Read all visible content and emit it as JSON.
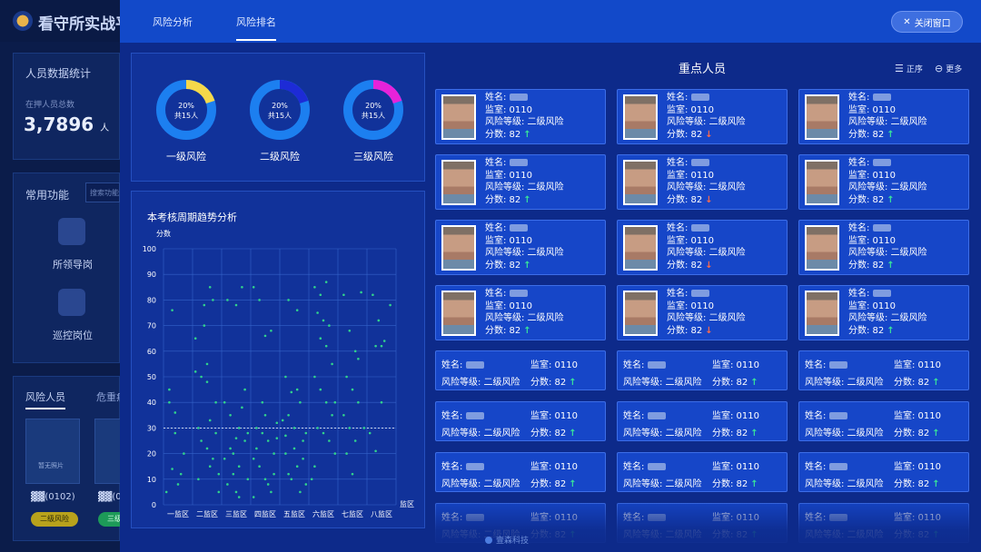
{
  "background": {
    "title": "看守所实战平",
    "stats_title": "人员数据统计",
    "total_label": "在押人员总数",
    "total_value": "3,7896",
    "total_unit": "人",
    "common_title": "常用功能",
    "search_placeholder": "搜索功能",
    "func1": "所领导岗",
    "func2": "巡控岗位",
    "tab1": "风险人员",
    "tab2": "危重病",
    "thumb_label": "暂无照片",
    "person_code1": "(0102)",
    "person_code2": "(0",
    "tag1": "二级风险",
    "tag2": "三级"
  },
  "modal": {
    "tabs": [
      "风险分析",
      "风险排名"
    ],
    "active_tab": 1,
    "close_label": "关闭窗口"
  },
  "donuts": [
    {
      "label": "一级风险",
      "percent_text": "20%",
      "count_text": "共15人",
      "percent": 0.2,
      "accent": "#f5d84a"
    },
    {
      "label": "二级风险",
      "percent_text": "20%",
      "count_text": "共15人",
      "percent": 0.2,
      "accent": "#1d2bd6"
    },
    {
      "label": "三级风险",
      "percent_text": "20%",
      "count_text": "共15人",
      "percent": 0.2,
      "accent": "#e623d9"
    }
  ],
  "chart_data": {
    "type": "scatter",
    "title": "本考核周期趋势分析",
    "ylabel": "分数",
    "xlabel": "监区",
    "categories": [
      "一监区",
      "二监区",
      "三监区",
      "四监区",
      "五监区",
      "六监区",
      "七监区",
      "八监区"
    ],
    "yticks": [
      0,
      10,
      20,
      30,
      40,
      50,
      60,
      70,
      80,
      90,
      100
    ],
    "ylim": [
      0,
      100
    ],
    "reference_line": 30,
    "point_color": "#31d28c",
    "points": [
      [
        0.1,
        5
      ],
      [
        0.3,
        76
      ],
      [
        0.2,
        40
      ],
      [
        0.4,
        28
      ],
      [
        0.6,
        12
      ],
      [
        0.5,
        8
      ],
      [
        0.2,
        45
      ],
      [
        0.4,
        36
      ],
      [
        0.7,
        20
      ],
      [
        0.3,
        14
      ],
      [
        1.1,
        52
      ],
      [
        1.3,
        50
      ],
      [
        1.5,
        48
      ],
      [
        1.6,
        85
      ],
      [
        1.4,
        78
      ],
      [
        1.7,
        80
      ],
      [
        1.2,
        30
      ],
      [
        1.5,
        22
      ],
      [
        1.8,
        28
      ],
      [
        1.3,
        25
      ],
      [
        1.6,
        15
      ],
      [
        1.9,
        12
      ],
      [
        1.1,
        65
      ],
      [
        1.4,
        70
      ],
      [
        1.8,
        40
      ],
      [
        1.2,
        10
      ],
      [
        1.6,
        33
      ],
      [
        1.5,
        55
      ],
      [
        1.9,
        5
      ],
      [
        1.7,
        18
      ],
      [
        2.2,
        80
      ],
      [
        2.5,
        78
      ],
      [
        2.7,
        85
      ],
      [
        2.1,
        40
      ],
      [
        2.3,
        35
      ],
      [
        2.6,
        30
      ],
      [
        2.8,
        25
      ],
      [
        2.4,
        20
      ],
      [
        2.6,
        15
      ],
      [
        2.9,
        10
      ],
      [
        2.2,
        8
      ],
      [
        2.5,
        5
      ],
      [
        2.7,
        38
      ],
      [
        2.3,
        22
      ],
      [
        2.9,
        28
      ],
      [
        2.1,
        18
      ],
      [
        2.8,
        45
      ],
      [
        2.4,
        12
      ],
      [
        2.6,
        3
      ],
      [
        2.5,
        26
      ],
      [
        3.1,
        85
      ],
      [
        3.3,
        80
      ],
      [
        3.5,
        66
      ],
      [
        3.7,
        68
      ],
      [
        3.2,
        30
      ],
      [
        3.4,
        28
      ],
      [
        3.6,
        25
      ],
      [
        3.8,
        20
      ],
      [
        3.3,
        15
      ],
      [
        3.5,
        10
      ],
      [
        3.7,
        5
      ],
      [
        3.1,
        18
      ],
      [
        3.9,
        32
      ],
      [
        3.4,
        40
      ],
      [
        3.6,
        8
      ],
      [
        3.2,
        22
      ],
      [
        3.8,
        12
      ],
      [
        3.5,
        35
      ],
      [
        3.9,
        26
      ],
      [
        3.1,
        3
      ],
      [
        4.3,
        80
      ],
      [
        4.6,
        76
      ],
      [
        4.2,
        50
      ],
      [
        4.4,
        44
      ],
      [
        4.7,
        40
      ],
      [
        4.3,
        35
      ],
      [
        4.5,
        30
      ],
      [
        4.8,
        25
      ],
      [
        4.2,
        20
      ],
      [
        4.6,
        15
      ],
      [
        4.4,
        10
      ],
      [
        4.7,
        5
      ],
      [
        4.9,
        28
      ],
      [
        4.1,
        33
      ],
      [
        4.5,
        22
      ],
      [
        4.8,
        18
      ],
      [
        4.3,
        12
      ],
      [
        4.6,
        45
      ],
      [
        4.9,
        8
      ],
      [
        4.2,
        27
      ],
      [
        5.2,
        85
      ],
      [
        5.4,
        82
      ],
      [
        5.6,
        87
      ],
      [
        5.3,
        75
      ],
      [
        5.5,
        72
      ],
      [
        5.7,
        70
      ],
      [
        5.2,
        50
      ],
      [
        5.4,
        45
      ],
      [
        5.6,
        40
      ],
      [
        5.8,
        35
      ],
      [
        5.3,
        30
      ],
      [
        5.5,
        28
      ],
      [
        5.7,
        25
      ],
      [
        5.9,
        20
      ],
      [
        5.2,
        15
      ],
      [
        5.6,
        62
      ],
      [
        5.8,
        55
      ],
      [
        5.4,
        65
      ],
      [
        5.1,
        10
      ],
      [
        5.9,
        40
      ],
      [
        6.2,
        82
      ],
      [
        6.4,
        68
      ],
      [
        6.6,
        60
      ],
      [
        6.3,
        50
      ],
      [
        6.5,
        45
      ],
      [
        6.7,
        40
      ],
      [
        6.2,
        35
      ],
      [
        6.4,
        30
      ],
      [
        6.6,
        25
      ],
      [
        6.3,
        20
      ],
      [
        6.8,
        83
      ],
      [
        6.5,
        12
      ],
      [
        6.7,
        57
      ],
      [
        6.9,
        30
      ],
      [
        7.2,
        82
      ],
      [
        7.4,
        72
      ],
      [
        7.6,
        64
      ],
      [
        7.3,
        62
      ],
      [
        7.5,
        40
      ],
      [
        7.1,
        28
      ],
      [
        7.3,
        21
      ],
      [
        7.5,
        62
      ],
      [
        7.8,
        78
      ]
    ]
  },
  "key_persons": {
    "title": "重点人员",
    "sort_label": "正序",
    "more_label": "更多",
    "name_label": "姓名:",
    "room_label": "监室:",
    "room_value": "0110",
    "risk_label": "风险等级:",
    "risk_value": "二级风险",
    "score_label": "分数:",
    "score_value": "82",
    "photo_cards": [
      {
        "trend": "up"
      },
      {
        "trend": "down"
      },
      {
        "trend": "up"
      },
      {
        "trend": "up"
      },
      {
        "trend": "down"
      },
      {
        "trend": "up"
      },
      {
        "trend": "up"
      },
      {
        "trend": "down"
      },
      {
        "trend": "up"
      },
      {
        "trend": "up"
      },
      {
        "trend": "down"
      },
      {
        "trend": "up"
      }
    ],
    "compact_cards": [
      {
        "trend": "up"
      },
      {
        "trend": "up"
      },
      {
        "trend": "up"
      },
      {
        "trend": "up"
      },
      {
        "trend": "up"
      },
      {
        "trend": "up"
      },
      {
        "trend": "up"
      },
      {
        "trend": "up"
      },
      {
        "trend": "up"
      },
      {
        "trend": "up"
      },
      {
        "trend": "up"
      },
      {
        "trend": "up"
      }
    ]
  },
  "footer": "壹森科技"
}
